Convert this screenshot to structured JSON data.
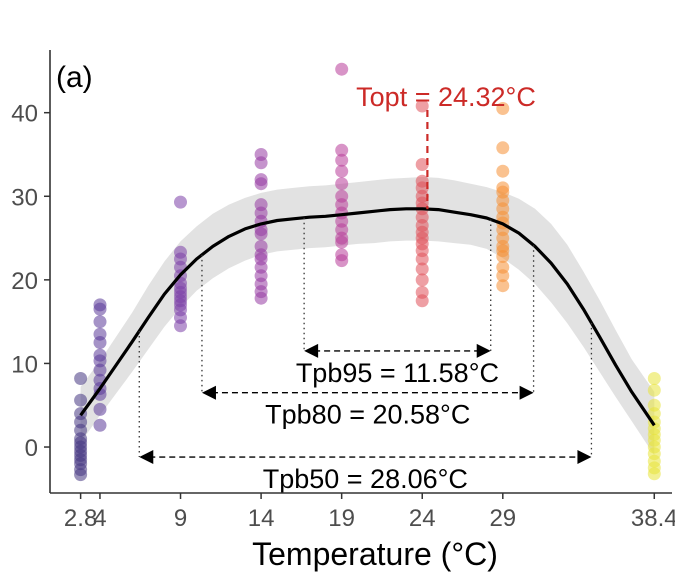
{
  "chart_data": {
    "type": "scatter",
    "panel_label": "(a)",
    "xlabel": "Temperature (°C)",
    "ylabel": "",
    "x_ticks": [
      2.8,
      4,
      9,
      14,
      19,
      24,
      29,
      38.4
    ],
    "x_tick_labels": [
      "2.8",
      "4",
      "9",
      "14",
      "19",
      "24",
      "29",
      "38.4"
    ],
    "y_ticks": [
      0,
      10,
      20,
      30,
      40
    ],
    "y_tick_labels": [
      "0",
      "10",
      "20",
      "30",
      "40"
    ],
    "xlim": [
      0.9,
      39.5
    ],
    "ylim": [
      -5.5,
      47.5
    ],
    "grid": false,
    "legend": "none",
    "series": [
      {
        "x": 2.8,
        "color": "#453781",
        "values": [
          8.2,
          5.6,
          4.0,
          3.0,
          2.0,
          1.0,
          0.5,
          0,
          -0.5,
          -1.0,
          -1.5,
          -2.0,
          -2.7,
          -3.3
        ]
      },
      {
        "x": 4,
        "color": "#5b3a99",
        "values": [
          17.0,
          16.5,
          15.0,
          13.5,
          12.5,
          11.0,
          10.3,
          9.2,
          8.0,
          7.0,
          6.3,
          4.5,
          2.6
        ]
      },
      {
        "x": 9,
        "color": "#7b3fa8",
        "values": [
          29.3,
          23.3,
          22.5,
          21.5,
          20.5,
          19.6,
          19.0,
          18.5,
          18.0,
          17.5,
          17.0,
          16.4,
          15.5,
          14.5
        ]
      },
      {
        "x": 14,
        "color": "#953ba3",
        "values": [
          35.0,
          34.0,
          32.0,
          31.5,
          29.0,
          28.0,
          27.0,
          26.0,
          25.5,
          24.0,
          23.0,
          22.5,
          21.5,
          20.5,
          19.5,
          18.6,
          17.8
        ]
      },
      {
        "x": 19,
        "color": "#b83d99",
        "values": [
          45.2,
          35.5,
          34.3,
          33.0,
          31.5,
          30.0,
          29.0,
          28.0,
          27.0,
          26.0,
          25.0,
          24.5,
          23.0,
          22.3
        ]
      },
      {
        "x": 24,
        "color": "#e0505a",
        "values": [
          40.8,
          33.8,
          31.8,
          31.0,
          30.0,
          29.2,
          28.5,
          27.5,
          26.5,
          25.7,
          25.0,
          24.3,
          23.5,
          22.5,
          21.3,
          20.0,
          18.5,
          17.5
        ]
      },
      {
        "x": 29,
        "color": "#f58f34",
        "values": [
          40.5,
          35.8,
          33.0,
          31.0,
          30.5,
          29.5,
          28.5,
          27.5,
          26.8,
          26.0,
          25.0,
          24.0,
          23.5,
          22.8,
          21.5,
          20.5,
          19.3
        ]
      },
      {
        "x": 38.4,
        "color": "#e8e43a",
        "values": [
          8.2,
          6.8,
          5.0,
          4.0,
          3.0,
          2.2,
          1.5,
          0.8,
          0,
          -0.8,
          -1.7,
          -2.5,
          -3.2
        ]
      }
    ],
    "fit_curve": {
      "x": [
        2.8,
        4,
        5,
        6,
        7,
        8,
        9,
        10,
        11,
        12,
        13,
        14,
        15,
        16,
        17,
        18,
        19,
        20,
        21,
        22,
        23,
        24,
        25,
        26,
        27,
        28,
        29,
        30,
        31,
        32,
        33,
        34,
        35,
        36,
        37,
        38.4
      ],
      "y": [
        3.8,
        7.0,
        9.8,
        12.6,
        15.5,
        18.3,
        20.6,
        22.5,
        24.0,
        25.2,
        26.1,
        26.7,
        27.1,
        27.3,
        27.5,
        27.6,
        27.8,
        28.0,
        28.2,
        28.4,
        28.5,
        28.5,
        28.4,
        28.1,
        27.8,
        27.4,
        26.7,
        25.6,
        24.0,
        22.0,
        19.5,
        16.5,
        13.2,
        9.8,
        6.6,
        2.6
      ],
      "ci_lower": [
        0.5,
        3.8,
        6.4,
        9.0,
        11.7,
        14.4,
        16.7,
        18.7,
        20.2,
        21.4,
        22.3,
        23.0,
        23.4,
        23.6,
        23.8,
        23.9,
        24.1,
        24.3,
        24.4,
        24.6,
        24.7,
        24.7,
        24.6,
        24.4,
        24.2,
        23.7,
        22.6,
        21.2,
        19.5,
        17.3,
        14.8,
        12.0,
        9.0,
        6.0,
        3.1,
        -1.0
      ],
      "ci_upper": [
        7.2,
        10.3,
        13.2,
        16.1,
        19.3,
        22.2,
        24.6,
        26.4,
        27.9,
        29.0,
        29.8,
        30.4,
        30.8,
        31.0,
        31.2,
        31.3,
        31.5,
        31.7,
        31.9,
        32.1,
        32.2,
        32.3,
        32.2,
        31.9,
        31.5,
        31.1,
        30.5,
        29.7,
        28.5,
        26.7,
        24.2,
        21.0,
        17.6,
        14.0,
        10.5,
        6.6
      ],
      "line_color": "#000000",
      "band_color": "#e2e2e2"
    },
    "topt": {
      "label": "Topt = 24.32°C",
      "x": 24.32,
      "color": "#cc2a27"
    },
    "tpb_intervals": [
      {
        "label": "Tpb95 = 11.58°C",
        "x_start": 16.67,
        "x_end": 28.25,
        "y": 11.5
      },
      {
        "label": "Tpb80 = 20.58°C",
        "x_start": 10.33,
        "x_end": 30.91,
        "y": 6.5
      },
      {
        "label": "Tpb50 = 28.06°C",
        "x_start": 6.44,
        "x_end": 34.5,
        "y": -1.2
      }
    ]
  }
}
